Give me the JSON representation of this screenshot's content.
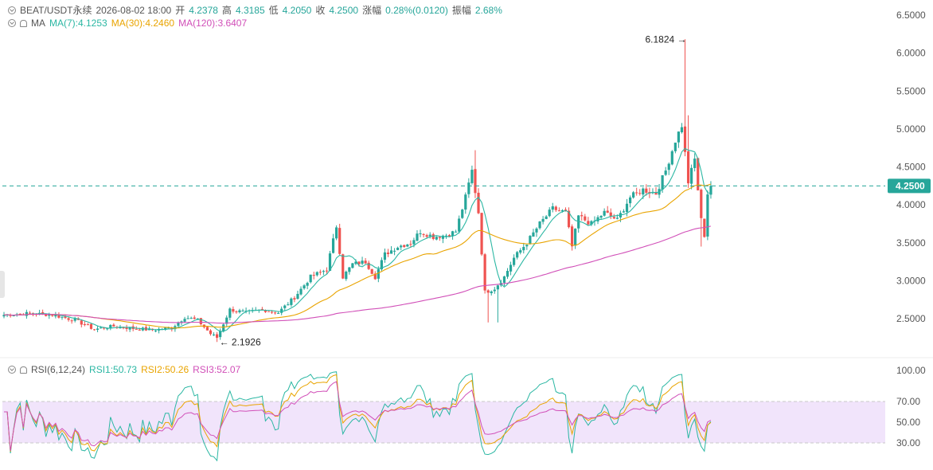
{
  "header": {
    "symbol": "BEAT/USDT永续",
    "datetime": "2026-08-02 18:00",
    "open_label": "开",
    "open": "4.2378",
    "high_label": "高",
    "high": "4.3185",
    "low_label": "低",
    "low": "4.2050",
    "close_label": "收",
    "close": "4.2500",
    "change_label": "涨幅",
    "change": "0.28%(0.0120)",
    "amp_label": "振幅",
    "amp": "2.68%"
  },
  "ma_legend": {
    "name": "MA",
    "ma7": "MA(7):4.1253",
    "ma30": "MA(30):4.2460",
    "ma120": "MA(120):3.6407"
  },
  "rsi_legend": {
    "name": "RSI(6,12,24)",
    "rsi1": "RSI1:50.73",
    "rsi2": "RSI2:50.26",
    "rsi3": "RSI3:52.07"
  },
  "colors": {
    "up": "#26a69a",
    "down": "#ef5350",
    "ma7": "#2bb7a3",
    "ma30": "#e9a400",
    "ma120": "#d14fb8",
    "rsi_band": "#f1e4fb",
    "price_tag": "#26a69a"
  },
  "chart_data": {
    "type": "candlestick",
    "price_axis": {
      "ticks": [
        "6.5000",
        "6.0000",
        "5.5000",
        "5.0000",
        "4.5000",
        "4.0000",
        "3.5000",
        "3.0000",
        "2.5000"
      ],
      "ylim": [
        2.0,
        6.6
      ]
    },
    "current_price": "4.2500",
    "annotations": {
      "high": "6.1824",
      "low": "2.1926"
    },
    "rsi_axis": {
      "ticks": [
        "100.00",
        "70.00",
        "50.00",
        "30.00"
      ],
      "band": [
        30,
        70
      ]
    },
    "candle_count": 220,
    "ma_periods": [
      7,
      30,
      120
    ],
    "close_path": [
      [
        0,
        2.55
      ],
      [
        8,
        2.57
      ],
      [
        15,
        2.55
      ],
      [
        22,
        2.48
      ],
      [
        28,
        2.36
      ],
      [
        34,
        2.4
      ],
      [
        40,
        2.37
      ],
      [
        46,
        2.35
      ],
      [
        52,
        2.38
      ],
      [
        56,
        2.52
      ],
      [
        60,
        2.48
      ],
      [
        64,
        2.3
      ],
      [
        66,
        2.25
      ],
      [
        70,
        2.62
      ],
      [
        75,
        2.58
      ],
      [
        80,
        2.62
      ],
      [
        85,
        2.58
      ],
      [
        90,
        2.78
      ],
      [
        95,
        3.05
      ],
      [
        100,
        3.15
      ],
      [
        103,
        3.72
      ],
      [
        105,
        3.05
      ],
      [
        108,
        3.22
      ],
      [
        112,
        3.25
      ],
      [
        115,
        3.05
      ],
      [
        118,
        3.35
      ],
      [
        122,
        3.45
      ],
      [
        126,
        3.5
      ],
      [
        129,
        3.65
      ],
      [
        133,
        3.58
      ],
      [
        137,
        3.6
      ],
      [
        140,
        3.65
      ],
      [
        143,
        4.1
      ],
      [
        145,
        4.45
      ],
      [
        147,
        3.9
      ],
      [
        149,
        2.85
      ],
      [
        152,
        2.9
      ],
      [
        155,
        3.05
      ],
      [
        158,
        3.3
      ],
      [
        162,
        3.5
      ],
      [
        166,
        3.75
      ],
      [
        170,
        3.95
      ],
      [
        174,
        3.9
      ],
      [
        176,
        3.45
      ],
      [
        178,
        3.85
      ],
      [
        182,
        3.75
      ],
      [
        186,
        3.9
      ],
      [
        190,
        3.8
      ],
      [
        194,
        4.1
      ],
      [
        198,
        4.2
      ],
      [
        202,
        4.15
      ],
      [
        205,
        4.45
      ],
      [
        208,
        4.85
      ],
      [
        210,
        5.05
      ],
      [
        212,
        4.3
      ],
      [
        214,
        4.6
      ],
      [
        216,
        3.8
      ],
      [
        217,
        3.6
      ],
      [
        218,
        4.15
      ],
      [
        219,
        4.25
      ]
    ],
    "wicks": [
      {
        "i": 66,
        "low": 2.1926
      },
      {
        "i": 104,
        "high": 3.75
      },
      {
        "i": 146,
        "high": 4.72
      },
      {
        "i": 150,
        "low": 2.45
      },
      {
        "i": 153,
        "low": 2.45
      },
      {
        "i": 211,
        "high": 6.1824
      },
      {
        "i": 212,
        "high": 5.18
      },
      {
        "i": 214,
        "high": 4.68
      },
      {
        "i": 216,
        "low": 3.45
      }
    ]
  }
}
